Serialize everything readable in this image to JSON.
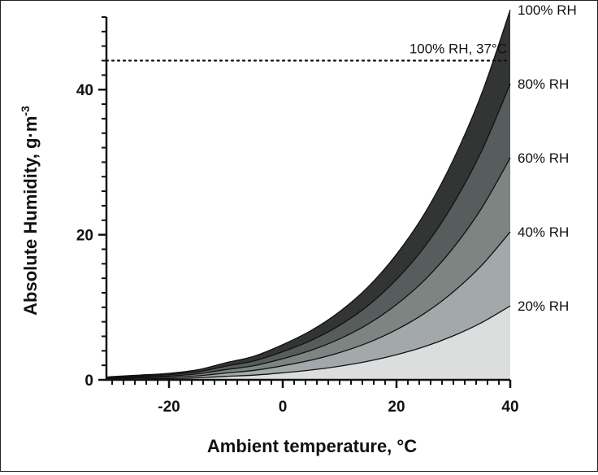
{
  "chart_data": {
    "type": "area",
    "xlabel": "Ambient temperature, °C",
    "ylabel": {
      "main": "Absolute Humidity, g·m",
      "sup": "-3"
    },
    "xlim": [
      -31,
      40
    ],
    "ylim": [
      0,
      50
    ],
    "x_ticks": [
      -20,
      0,
      20,
      40
    ],
    "y_ticks": [
      0,
      20,
      40
    ],
    "x_minor_step": 2,
    "y_minor_step": 2,
    "x_tick_labels": [
      "-20",
      "0",
      "20",
      "40"
    ],
    "y_tick_labels": [
      "0",
      "20",
      "40"
    ],
    "x": [
      -31,
      -30,
      -25,
      -20,
      -15,
      -10,
      -5,
      0,
      5,
      10,
      15,
      20,
      25,
      30,
      35,
      40
    ],
    "series": [
      {
        "name": "20% RH",
        "color": "#dcdedd",
        "values": [
          0.07,
          0.09,
          0.13,
          0.18,
          0.28,
          0.47,
          0.65,
          0.97,
          1.36,
          1.88,
          2.56,
          3.46,
          4.6,
          6.07,
          7.9,
          10.2
        ]
      },
      {
        "name": "40% RH",
        "color": "#a3a9ab",
        "values": [
          0.14,
          0.18,
          0.27,
          0.36,
          0.55,
          0.94,
          1.31,
          1.94,
          2.72,
          3.76,
          5.12,
          6.92,
          9.2,
          12.14,
          15.8,
          20.4
        ]
      },
      {
        "name": "60% RH",
        "color": "#7d8583",
        "values": [
          0.21,
          0.27,
          0.4,
          0.53,
          0.83,
          1.41,
          1.96,
          2.91,
          4.08,
          5.64,
          7.68,
          10.38,
          13.8,
          18.21,
          23.7,
          30.6
        ]
      },
      {
        "name": "80% RH",
        "color": "#575c5c",
        "values": [
          0.28,
          0.36,
          0.53,
          0.71,
          1.1,
          1.88,
          2.62,
          3.88,
          5.44,
          7.52,
          10.24,
          13.84,
          18.4,
          24.28,
          31.6,
          40.8
        ]
      },
      {
        "name": "100% RH",
        "color": "#333434",
        "values": [
          0.35,
          0.45,
          0.66,
          0.89,
          1.38,
          2.35,
          3.27,
          4.85,
          6.8,
          9.4,
          12.8,
          17.3,
          23.0,
          30.35,
          39.5,
          51.0
        ]
      }
    ],
    "reference_line": {
      "label": "100% RH, 37°C",
      "y": 44.0,
      "x_from": -31,
      "x_to": 40,
      "style": "dotted"
    },
    "grid": false,
    "legend": "inline-right"
  }
}
